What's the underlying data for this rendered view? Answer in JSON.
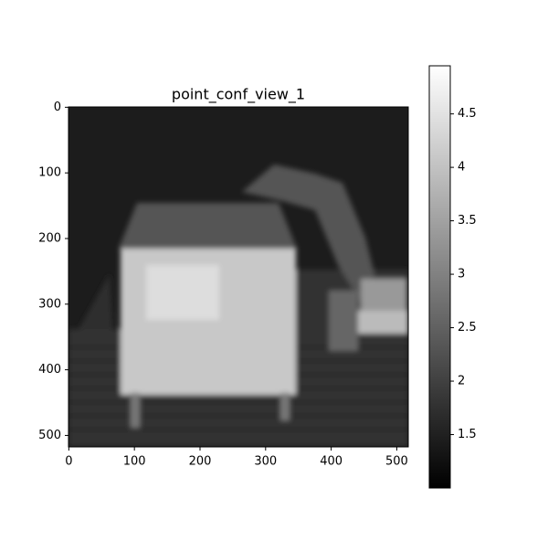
{
  "chart_data": {
    "type": "heatmap",
    "title": "point_conf_view_1",
    "colormap": "gray",
    "xlim": [
      -0.5,
      517.5
    ],
    "ylim": [
      517.5,
      -0.5
    ],
    "xticks": [
      0,
      100,
      200,
      300,
      400,
      500
    ],
    "yticks": [
      0,
      100,
      200,
      300,
      400,
      500
    ],
    "clim": [
      1.0,
      4.95
    ],
    "cticks": [
      1.5,
      2.0,
      2.5,
      3.0,
      3.5,
      4.0,
      4.5
    ]
  }
}
